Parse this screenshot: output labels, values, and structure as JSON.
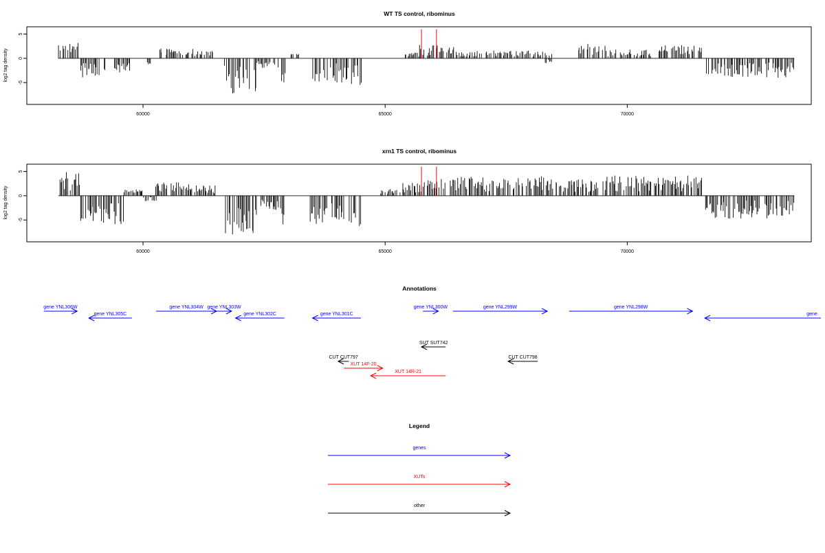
{
  "colors": {
    "bars": "#000000",
    "highlight": "#ff0000",
    "genes": "#0000ff",
    "xuts": "#ff0000",
    "other": "#000000",
    "frame": "#000000"
  },
  "chart_data": [
    {
      "type": "bar",
      "title": "WT TS control, ribominus",
      "ylabel": "log2 tag density",
      "xlabel": "",
      "xlim": [
        57600,
        73800
      ],
      "ylim": [
        -9.5,
        6.5
      ],
      "xticks": [
        60000,
        65000,
        70000
      ],
      "yticks": [
        5,
        0,
        -5
      ],
      "grid": false,
      "highlight_positions": [
        65750,
        66060
      ],
      "highlight_height": 6.0,
      "regions": [
        {
          "start": 58250,
          "end": 58680,
          "type": "up",
          "amp": 3.2
        },
        {
          "start": 58700,
          "end": 59230,
          "type": "down",
          "amp": 4.0
        },
        {
          "start": 59400,
          "end": 59740,
          "type": "down",
          "amp": 3.0
        },
        {
          "start": 60080,
          "end": 60160,
          "type": "down",
          "amp": 1.5
        },
        {
          "start": 60330,
          "end": 61050,
          "type": "up",
          "amp": 2.0
        },
        {
          "start": 61050,
          "end": 61500,
          "type": "up",
          "amp": 1.5
        },
        {
          "start": 61680,
          "end": 62350,
          "type": "down",
          "amp": 7.3
        },
        {
          "start": 62350,
          "end": 62820,
          "type": "down",
          "amp": 2.0
        },
        {
          "start": 62850,
          "end": 62940,
          "type": "down",
          "amp": 6.0
        },
        {
          "start": 63020,
          "end": 63300,
          "type": "up",
          "amp": 1.0
        },
        {
          "start": 63450,
          "end": 64250,
          "type": "down",
          "amp": 5.0
        },
        {
          "start": 64300,
          "end": 64520,
          "type": "down",
          "amp": 5.5
        },
        {
          "start": 65400,
          "end": 65700,
          "type": "up",
          "amp": 1.2
        },
        {
          "start": 65700,
          "end": 66450,
          "type": "up",
          "amp": 2.8
        },
        {
          "start": 66450,
          "end": 67250,
          "type": "up",
          "amp": 1.6
        },
        {
          "start": 67250,
          "end": 68450,
          "type": "up",
          "amp": 1.6
        },
        {
          "start": 68300,
          "end": 68450,
          "type": "down",
          "amp": 1.5
        },
        {
          "start": 68980,
          "end": 69550,
          "type": "up",
          "amp": 3.0
        },
        {
          "start": 69550,
          "end": 70500,
          "type": "up",
          "amp": 1.8
        },
        {
          "start": 70600,
          "end": 71550,
          "type": "up",
          "amp": 2.8
        },
        {
          "start": 71600,
          "end": 73450,
          "type": "down",
          "amp": 4.0
        }
      ]
    },
    {
      "type": "bar",
      "title": "xrn1 TS control, ribominus",
      "ylabel": "log2 tag density",
      "xlabel": "",
      "xlim": [
        57600,
        73800
      ],
      "ylim": [
        -9.5,
        6.5
      ],
      "xticks": [
        60000,
        65000,
        70000
      ],
      "yticks": [
        5,
        0,
        -5
      ],
      "grid": false,
      "highlight_positions": [
        65750,
        66060
      ],
      "highlight_height": 6.0,
      "regions": [
        {
          "start": 58250,
          "end": 58700,
          "type": "up",
          "amp": 5.0
        },
        {
          "start": 58700,
          "end": 59600,
          "type": "down",
          "amp": 6.0
        },
        {
          "start": 59600,
          "end": 60000,
          "type": "up",
          "amp": 1.5
        },
        {
          "start": 60000,
          "end": 60300,
          "type": "down",
          "amp": 1.2
        },
        {
          "start": 60250,
          "end": 61050,
          "type": "up",
          "amp": 2.8
        },
        {
          "start": 61050,
          "end": 61500,
          "type": "up",
          "amp": 2.2
        },
        {
          "start": 61680,
          "end": 62450,
          "type": "down",
          "amp": 8.0
        },
        {
          "start": 62450,
          "end": 62850,
          "type": "down",
          "amp": 3.0
        },
        {
          "start": 62850,
          "end": 62950,
          "type": "down",
          "amp": 7.0
        },
        {
          "start": 63450,
          "end": 64150,
          "type": "down",
          "amp": 6.0
        },
        {
          "start": 64250,
          "end": 64500,
          "type": "down",
          "amp": 6.5
        },
        {
          "start": 64900,
          "end": 65350,
          "type": "up",
          "amp": 1.5
        },
        {
          "start": 65350,
          "end": 65700,
          "type": "up",
          "amp": 2.8
        },
        {
          "start": 65700,
          "end": 66450,
          "type": "up",
          "amp": 3.5
        },
        {
          "start": 66450,
          "end": 68400,
          "type": "up",
          "amp": 4.0
        },
        {
          "start": 68400,
          "end": 69400,
          "type": "up",
          "amp": 3.5
        },
        {
          "start": 69400,
          "end": 71550,
          "type": "up",
          "amp": 4.2
        },
        {
          "start": 71600,
          "end": 73450,
          "type": "down",
          "amp": 4.8
        }
      ]
    }
  ],
  "annotations": {
    "title": "Annotations",
    "genes": [
      {
        "label": "gene YNL306W",
        "strand": "+",
        "start": 57950,
        "end": 58640,
        "row": 1
      },
      {
        "label": "gene YNL305C",
        "strand": "-",
        "start": 58880,
        "end": 59770,
        "row": 2
      },
      {
        "label": "gene YNL304W",
        "strand": "+",
        "start": 60270,
        "end": 61520,
        "row": 1
      },
      {
        "label": "gene YNL303W",
        "strand": "+",
        "start": 61520,
        "end": 61830,
        "row": 1
      },
      {
        "label": "gene YNL302C",
        "strand": "-",
        "start": 61910,
        "end": 62920,
        "row": 2
      },
      {
        "label": "gene YNL301C",
        "strand": "-",
        "start": 63500,
        "end": 64500,
        "row": 2
      },
      {
        "label": "gene YNL300W",
        "strand": "+",
        "start": 65780,
        "end": 66100,
        "row": 1
      },
      {
        "label": "gene YNL299W",
        "strand": "+",
        "start": 66400,
        "end": 68350,
        "row": 1
      },
      {
        "label": "gene YNL298W",
        "strand": "+",
        "start": 68800,
        "end": 71350,
        "row": 1
      },
      {
        "label": "gene",
        "strand": "-",
        "start": 71600,
        "end": 74000,
        "row": 2,
        "label_at": "right"
      }
    ],
    "others": [
      {
        "label": "SUT SUT742",
        "strand": "-",
        "start": 65750,
        "end": 66250,
        "row": 1
      },
      {
        "label": "CUT CUT797",
        "strand": "-",
        "start": 64030,
        "end": 64250,
        "row": 2
      },
      {
        "label": "CUT CUT798",
        "strand": "-",
        "start": 67540,
        "end": 68150,
        "row": 2
      }
    ],
    "xuts": [
      {
        "label": "XUT 14F-20",
        "strand": "+",
        "start": 64150,
        "end": 64950,
        "row": 3
      },
      {
        "label": "XUT 14R-21",
        "strand": "-",
        "start": 64700,
        "end": 66250,
        "row": 4
      }
    ]
  },
  "legend": {
    "title": "Legend",
    "items": [
      {
        "label": "genes",
        "key": "genes"
      },
      {
        "label": "XUTs",
        "key": "xuts"
      },
      {
        "label": "other",
        "key": "other"
      }
    ]
  }
}
